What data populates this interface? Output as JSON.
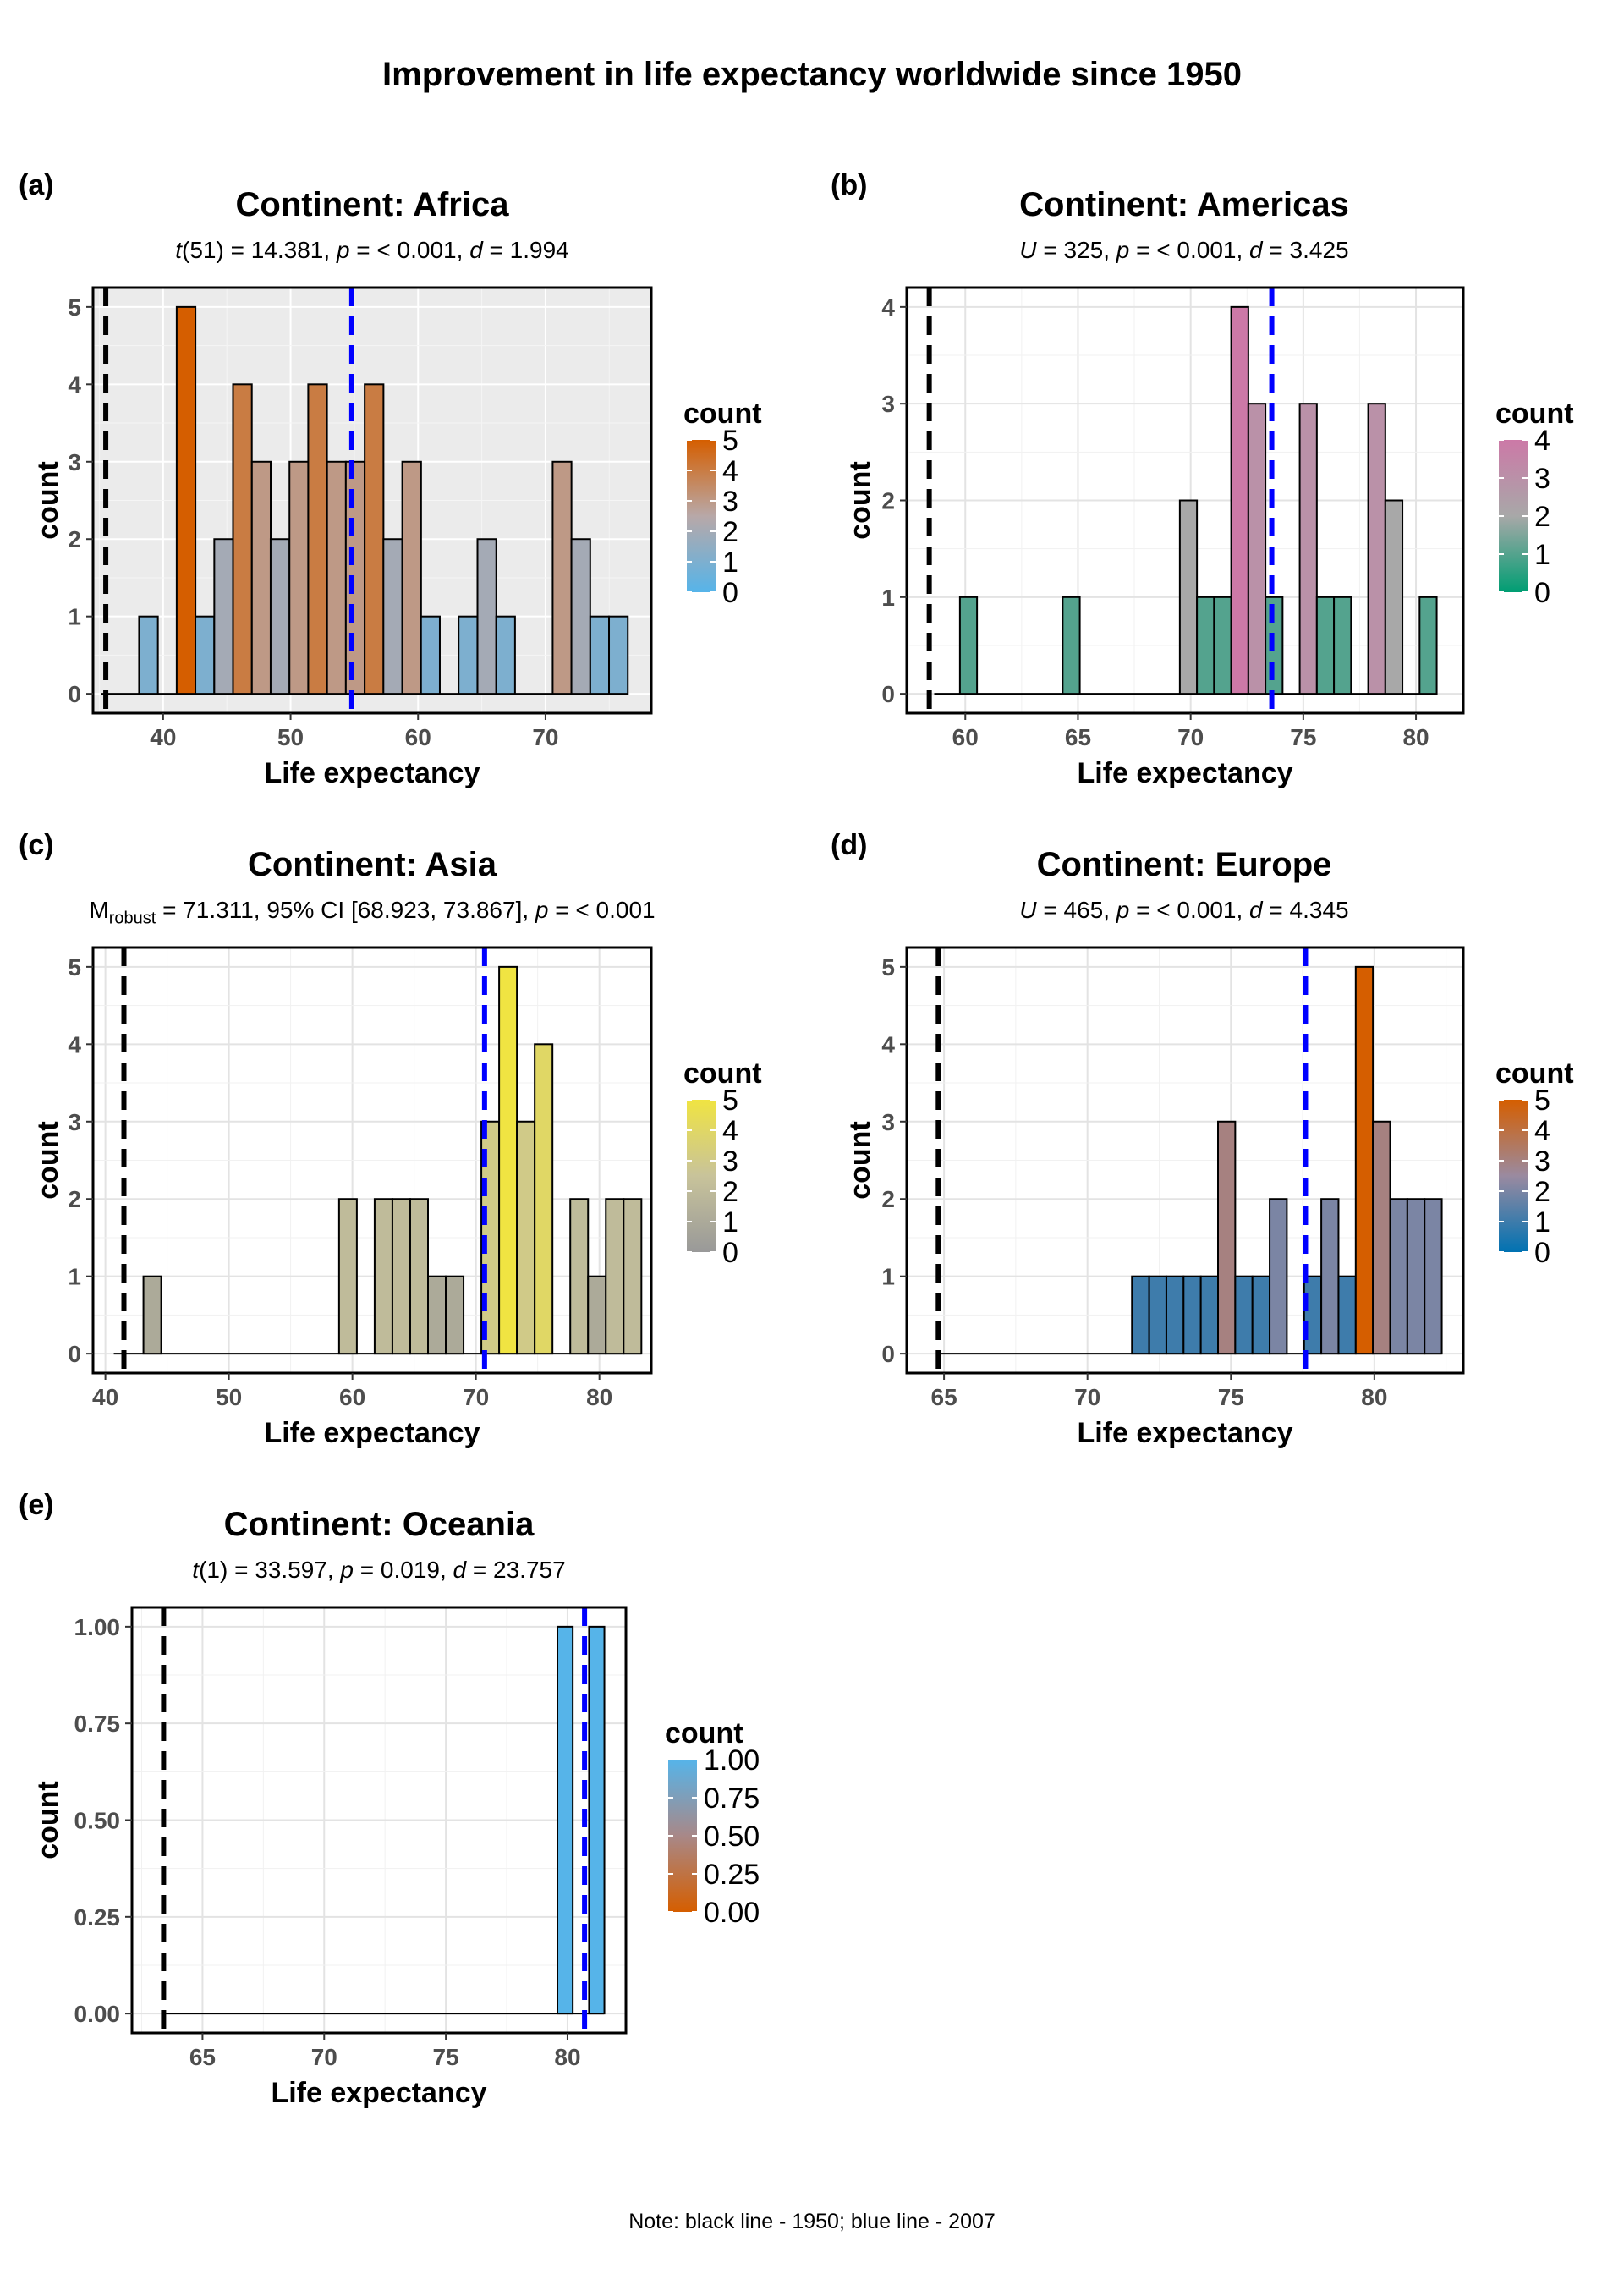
{
  "title": "Improvement in life expectancy worldwide since 1950",
  "note": "Note: black line - 1950; blue line - 2007",
  "legend_title": "count",
  "chart_data": [
    {
      "tag": "(a)",
      "type": "bar",
      "title": "Continent: Africa",
      "subtitle": {
        "kind": "t",
        "parts": [
          "t",
          "(51) = 14.381, ",
          "p",
          " = < 0.001, ",
          "d",
          " = 1.994"
        ]
      },
      "xlabel": "Life expectancy",
      "ylabel": "count",
      "xlim": [
        34.5,
        78.3
      ],
      "ylim": [
        -0.25,
        5.25
      ],
      "x_ticks": [
        40,
        50,
        60,
        70
      ],
      "y_ticks": [
        0,
        1,
        2,
        3,
        4,
        5
      ],
      "y_tick_labels": [
        "0",
        "1",
        "2",
        "3",
        "4",
        "5"
      ],
      "grey_background": true,
      "bin_width": 1.475,
      "bin_centers": [
        35.9,
        37.37,
        38.85,
        40.32,
        41.8,
        43.27,
        44.75,
        46.22,
        47.7,
        49.17,
        50.65,
        52.12,
        53.6,
        55.07,
        56.55,
        58.02,
        59.5,
        60.97,
        62.45,
        63.92,
        65.4,
        66.87,
        68.35,
        69.82,
        71.3,
        72.77,
        74.25,
        75.72
      ],
      "counts": [
        0,
        0,
        1,
        0,
        5,
        1,
        2,
        4,
        3,
        2,
        3,
        4,
        3,
        3,
        4,
        2,
        3,
        1,
        0,
        1,
        2,
        1,
        0,
        0,
        3,
        2,
        1,
        1
      ],
      "vline_1950": 35.5,
      "vline_2007": 54.8,
      "color_low": "#56B4E9",
      "color_mid": "#B8A8A8",
      "color_high": "#D55E00",
      "legend_labels": [
        "0",
        "1",
        "2",
        "3",
        "4",
        "5"
      ],
      "legend_values": [
        0,
        1,
        2,
        3,
        4,
        5
      ],
      "legend_max": 5
    },
    {
      "tag": "(b)",
      "type": "bar",
      "title": "Continent: Americas",
      "subtitle": {
        "kind": "u",
        "parts": [
          "U",
          " = 325, ",
          "p",
          " = < 0.001, ",
          "d",
          " = 3.425"
        ]
      },
      "xlabel": "Life expectancy",
      "ylabel": "count",
      "xlim": [
        57.4,
        82.1
      ],
      "ylim": [
        -0.2,
        4.2
      ],
      "x_ticks": [
        60,
        65,
        70,
        75,
        80
      ],
      "y_ticks": [
        0,
        1,
        2,
        3,
        4
      ],
      "y_tick_labels": [
        "0",
        "1",
        "2",
        "3",
        "4"
      ],
      "grey_background": false,
      "bin_width": 0.76,
      "bin_centers": [
        59.0,
        60.14,
        60.9,
        61.66,
        62.42,
        63.18,
        63.94,
        64.7,
        65.46,
        66.22,
        66.98,
        67.74,
        68.5,
        69.26,
        69.9,
        70.66,
        71.42,
        72.18,
        72.94,
        73.7,
        74.46,
        75.22,
        75.98,
        76.74,
        77.5,
        78.26,
        79.02,
        79.78,
        80.54
      ],
      "counts": [
        0,
        1,
        0,
        0,
        0,
        0,
        0,
        1,
        0,
        0,
        0,
        0,
        0,
        0,
        2,
        1,
        1,
        4,
        3,
        1,
        0,
        3,
        1,
        1,
        0,
        3,
        2,
        0,
        1
      ],
      "vline_1950": 58.4,
      "vline_2007": 73.6,
      "color_low": "#009E73",
      "color_mid": "#A8A8A8",
      "color_high": "#CC79A7",
      "legend_labels": [
        "0",
        "1",
        "2",
        "3",
        "4"
      ],
      "legend_values": [
        0,
        1,
        2,
        3,
        4
      ],
      "legend_max": 4
    },
    {
      "tag": "(c)",
      "type": "bar",
      "title": "Continent: Asia",
      "subtitle": {
        "kind": "robust",
        "parts": [
          "M",
          "robust",
          " = 71.311, 95% CI [68.923, 73.867], ",
          "p",
          " = < 0.001"
        ]
      },
      "xlabel": "Life expectancy",
      "ylabel": "count",
      "xlim": [
        39.0,
        84.2
      ],
      "ylim": [
        -0.25,
        5.25
      ],
      "x_ticks": [
        40,
        50,
        60,
        70,
        80
      ],
      "y_ticks": [
        0,
        1,
        2,
        3,
        4,
        5
      ],
      "y_tick_labels": [
        "0",
        "1",
        "2",
        "3",
        "4",
        "5"
      ],
      "grey_background": false,
      "bin_width": 1.44,
      "bin_centers": [
        41.4,
        42.6,
        43.8,
        45.24,
        46.68,
        48.12,
        49.56,
        51.0,
        52.44,
        53.88,
        55.32,
        56.76,
        58.2,
        59.64,
        61.08,
        62.52,
        63.96,
        65.4,
        66.84,
        68.28,
        69.72,
        71.16,
        72.6,
        74.04,
        75.48,
        76.92,
        78.36,
        79.8,
        81.24,
        82.68
      ],
      "counts": [
        0,
        0,
        1,
        0,
        0,
        0,
        0,
        0,
        0,
        0,
        0,
        0,
        0,
        2,
        0,
        2,
        2,
        2,
        1,
        1,
        0,
        3,
        5,
        3,
        4,
        0,
        2,
        1,
        2,
        2
      ],
      "vline_1950": 41.5,
      "vline_2007": 70.7,
      "color_low": "#999999",
      "color_mid": "#C8C39A",
      "color_high": "#F0E442",
      "legend_labels": [
        "0",
        "1",
        "2",
        "3",
        "4",
        "5"
      ],
      "legend_values": [
        0,
        1,
        2,
        3,
        4,
        5
      ],
      "legend_max": 5
    },
    {
      "tag": "(d)",
      "type": "bar",
      "title": "Continent: Europe",
      "subtitle": {
        "kind": "u",
        "parts": [
          "U",
          " = 465, ",
          "p",
          " = < 0.001, ",
          "d",
          " = 4.345"
        ]
      },
      "xlabel": "Life expectancy",
      "ylabel": "count",
      "xlim": [
        63.7,
        83.1
      ],
      "ylim": [
        -0.25,
        5.25
      ],
      "x_ticks": [
        65,
        70,
        75,
        80
      ],
      "y_ticks": [
        0,
        1,
        2,
        3,
        4,
        5
      ],
      "y_tick_labels": [
        "0",
        "1",
        "2",
        "3",
        "4",
        "5"
      ],
      "grey_background": false,
      "bin_width": 0.6,
      "bin_centers": [
        65.2,
        65.8,
        66.4,
        67.0,
        67.6,
        68.2,
        68.8,
        69.4,
        70.0,
        70.6,
        71.2,
        71.85,
        72.45,
        73.05,
        73.65,
        74.25,
        74.85,
        75.45,
        76.05,
        76.65,
        77.25,
        77.85,
        78.45,
        79.05,
        79.65,
        80.25,
        80.85,
        81.45,
        82.05
      ],
      "counts": [
        0,
        0,
        0,
        0,
        0,
        0,
        0,
        0,
        0,
        0,
        0,
        1,
        1,
        1,
        1,
        1,
        3,
        1,
        1,
        2,
        0,
        1,
        2,
        1,
        5,
        3,
        2,
        2,
        2
      ],
      "vline_1950": 64.8,
      "vline_2007": 77.6,
      "color_low": "#0072B2",
      "color_mid": "#9A8AA0",
      "color_high": "#D55E00",
      "legend_labels": [
        "0",
        "1",
        "2",
        "3",
        "4",
        "5"
      ],
      "legend_values": [
        0,
        1,
        2,
        3,
        4,
        5
      ],
      "legend_max": 5
    },
    {
      "tag": "(e)",
      "type": "bar",
      "title": "Continent: Oceania",
      "subtitle": {
        "kind": "t",
        "parts": [
          "t",
          "(1) = 33.597, ",
          "p",
          " = 0.019, ",
          "d",
          " = 23.757"
        ]
      },
      "xlabel": "Life expectancy",
      "ylabel": "count",
      "xlim": [
        62.1,
        82.4
      ],
      "ylim": [
        -0.05,
        1.05
      ],
      "x_ticks": [
        65,
        70,
        75,
        80
      ],
      "y_ticks": [
        0,
        0.25,
        0.5,
        0.75,
        1.0
      ],
      "y_tick_labels": [
        "0.00",
        "0.25",
        "0.50",
        "0.75",
        "1.00"
      ],
      "grey_background": false,
      "bin_width": 0.63,
      "bin_centers": [
        63.8,
        79.9,
        81.2
      ],
      "counts": [
        0,
        1,
        1
      ],
      "baseline_from": 63.5,
      "baseline_to": 81.5,
      "vline_1950": 63.4,
      "vline_2007": 80.7,
      "color_low": "#D55E00",
      "color_mid": "#A88888",
      "color_high": "#56B4E9",
      "legend_labels": [
        "0.00",
        "0.25",
        "0.50",
        "0.75",
        "1.00"
      ],
      "legend_values": [
        0,
        0.25,
        0.5,
        0.75,
        1.0
      ],
      "legend_max": 1.0
    }
  ]
}
